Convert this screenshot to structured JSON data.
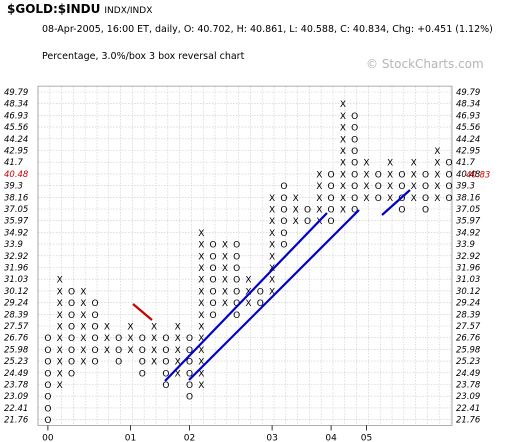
{
  "header": {
    "symbol": "$GOLD:$INDU",
    "exchange": "INDX/INDX",
    "stats": "08-Apr-2005, 16:00 ET, daily, O: 40.702, H: 40.861, L: 40.588, C: 40.834, Chg: +0.451 (1.12%)",
    "method": "Percentage, 3.0%/box 3 box reversal chart",
    "watermark": "© StockCharts.com"
  },
  "chart_data": {
    "type": "point-and-figure",
    "box_size_pct": 3.0,
    "reversal_boxes": 3,
    "price_levels": [
      "49.79",
      "48.34",
      "46.93",
      "45.56",
      "44.24",
      "42.95",
      "41.7",
      "40.48",
      "39.3",
      "38.16",
      "37.05",
      "35.97",
      "34.92",
      "33.9",
      "32.92",
      "31.96",
      "31.03",
      "30.12",
      "29.24",
      "28.39",
      "27.57",
      "26.76",
      "25.98",
      "25.23",
      "24.49",
      "23.78",
      "23.09",
      "22.41",
      "21.76"
    ],
    "left_special": "40.48",
    "right_special": "40.83",
    "x_labels": [
      {
        "text": "00",
        "col": 0
      },
      {
        "text": "01",
        "col": 7
      },
      {
        "text": "02",
        "col": 12
      },
      {
        "text": "03",
        "col": 19
      },
      {
        "text": "04",
        "col": 24
      },
      {
        "text": "05",
        "col": 27
      }
    ],
    "columns": [
      {
        "type": "O",
        "top": 26.76,
        "bottom": 21.76
      },
      {
        "type": "X",
        "top": 31.03,
        "bottom": 23.78
      },
      {
        "type": "O",
        "top": 30.12,
        "bottom": 24.49
      },
      {
        "type": "X",
        "top": 30.12,
        "bottom": 25.23
      },
      {
        "type": "O",
        "top": 29.24,
        "bottom": 25.23
      },
      {
        "type": "X",
        "top": 27.57,
        "bottom": 25.98
      },
      {
        "type": "O",
        "top": 26.76,
        "bottom": 25.23
      },
      {
        "type": "X",
        "top": 27.57,
        "bottom": 25.98
      },
      {
        "type": "O",
        "top": 26.76,
        "bottom": 24.49
      },
      {
        "type": "X",
        "top": 27.57,
        "bottom": 25.23
      },
      {
        "type": "O",
        "top": 26.76,
        "bottom": 23.78
      },
      {
        "type": "X",
        "top": 27.57,
        "bottom": 24.49
      },
      {
        "type": "O",
        "top": 26.76,
        "bottom": 23.09
      },
      {
        "type": "X",
        "top": 34.92,
        "bottom": 23.78
      },
      {
        "type": "O",
        "top": 33.9,
        "bottom": 28.39
      },
      {
        "type": "X",
        "top": 33.9,
        "bottom": 29.24
      },
      {
        "type": "O",
        "top": 33.9,
        "bottom": 28.39
      },
      {
        "type": "X",
        "top": 31.03,
        "bottom": 29.24
      },
      {
        "type": "O",
        "top": 30.12,
        "bottom": 29.24
      },
      {
        "type": "X",
        "top": 38.16,
        "bottom": 30.12
      },
      {
        "type": "O",
        "top": 39.3,
        "bottom": 33.9
      },
      {
        "type": "X",
        "top": 38.16,
        "bottom": 35.97
      },
      {
        "type": "O",
        "top": 37.05,
        "bottom": 35.97
      },
      {
        "type": "X",
        "top": 40.48,
        "bottom": 35.97
      },
      {
        "type": "O",
        "top": 40.48,
        "bottom": 35.97
      },
      {
        "type": "X",
        "top": 48.34,
        "bottom": 36.97
      },
      {
        "type": "O",
        "top": 46.93,
        "bottom": 37.05
      },
      {
        "type": "X",
        "top": 41.7,
        "bottom": 38.16
      },
      {
        "type": "O",
        "top": 40.48,
        "bottom": 38.16
      },
      {
        "type": "X",
        "top": 41.7,
        "bottom": 38.16
      },
      {
        "type": "O",
        "top": 40.48,
        "bottom": 37.05
      },
      {
        "type": "X",
        "top": 41.7,
        "bottom": 38.16
      },
      {
        "type": "O",
        "top": 40.48,
        "bottom": 37.05
      },
      {
        "type": "X",
        "top": 42.95,
        "bottom": 38.16
      },
      {
        "type": "O",
        "top": 41.7,
        "bottom": 38.16
      }
    ],
    "trend_lines": [
      {
        "color": "#0000cc",
        "points": [
          [
            165,
            381
          ],
          [
            327,
            213
          ]
        ]
      },
      {
        "color": "#0000cc",
        "points": [
          [
            189,
            380
          ],
          [
            359,
            210
          ]
        ]
      },
      {
        "color": "#0000cc",
        "points": [
          [
            382,
            215
          ],
          [
            410,
            190
          ]
        ]
      },
      {
        "color": "#cc0000",
        "points": [
          [
            133,
            304
          ],
          [
            152,
            320
          ]
        ]
      }
    ],
    "colors": {
      "x_mark": "#000000",
      "o_mark": "#000000",
      "month_mark": "#cc0000",
      "support": "#0000cc",
      "resistance": "#cc0000",
      "grid": "#c8c8c8"
    }
  }
}
